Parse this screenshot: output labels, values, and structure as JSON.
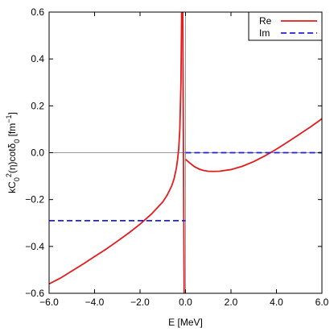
{
  "chart_data": {
    "type": "line",
    "xlabel": "E [MeV]",
    "ylabel_parts": [
      "kC",
      "0",
      "2",
      "(η)cotδ",
      "0",
      " [fm",
      "−1",
      "]"
    ],
    "xlim": [
      -6.0,
      6.0
    ],
    "ylim": [
      -0.6,
      0.6
    ],
    "x_ticks": [
      -6,
      -4,
      -2,
      0,
      2,
      4,
      6
    ],
    "x_tick_labels": [
      "−6.0",
      "−4.0",
      "−2.0",
      "0.0",
      "2.0",
      "4.0",
      "6.0"
    ],
    "y_ticks": [
      -0.6,
      -0.4,
      -0.2,
      0.0,
      0.2,
      0.4,
      0.6
    ],
    "y_tick_labels": [
      "−0.6",
      "−0.4",
      "−0.2",
      "0.0",
      "0.2",
      "0.4",
      "0.6"
    ],
    "legend_position": "top-right",
    "series": [
      {
        "name": "Re",
        "color": "#e41a1c",
        "style": "solid",
        "segments": [
          [
            [
              -6.0,
              -0.56
            ],
            [
              -5.5,
              -0.535
            ],
            [
              -5.0,
              -0.505
            ],
            [
              -4.5,
              -0.475
            ],
            [
              -4.0,
              -0.443
            ],
            [
              -3.5,
              -0.412
            ],
            [
              -3.0,
              -0.378
            ],
            [
              -2.5,
              -0.343
            ],
            [
              -2.0,
              -0.305
            ],
            [
              -1.5,
              -0.262
            ],
            [
              -1.0,
              -0.21
            ],
            [
              -0.8,
              -0.18
            ],
            [
              -0.6,
              -0.14
            ],
            [
              -0.5,
              -0.11
            ],
            [
              -0.4,
              -0.065
            ],
            [
              -0.35,
              -0.03
            ],
            [
              -0.3,
              0.015
            ],
            [
              -0.25,
              0.1
            ],
            [
              -0.2,
              0.3
            ],
            [
              -0.17,
              0.6
            ]
          ],
          [
            [
              -0.12,
              0.6
            ],
            [
              -0.1,
              0.2
            ],
            [
              -0.08,
              -0.2
            ],
            [
              -0.06,
              -0.6
            ]
          ],
          [
            [
              0.0,
              -0.028
            ],
            [
              0.2,
              -0.045
            ],
            [
              0.4,
              -0.06
            ],
            [
              0.6,
              -0.07
            ],
            [
              0.8,
              -0.076
            ],
            [
              1.0,
              -0.079
            ],
            [
              1.2,
              -0.08
            ],
            [
              1.5,
              -0.079
            ],
            [
              2.0,
              -0.072
            ],
            [
              2.5,
              -0.058
            ],
            [
              3.0,
              -0.038
            ],
            [
              3.5,
              -0.013
            ],
            [
              4.0,
              0.015
            ],
            [
              4.5,
              0.046
            ],
            [
              5.0,
              0.078
            ],
            [
              5.5,
              0.11
            ],
            [
              6.0,
              0.145
            ]
          ]
        ]
      },
      {
        "name": "Im",
        "color": "#1f1fe0",
        "style": "dashed",
        "segments": [
          [
            [
              -6.0,
              -0.29
            ],
            [
              0.0,
              -0.29
            ]
          ],
          [
            [
              0.0,
              0.0
            ],
            [
              6.0,
              0.0
            ]
          ]
        ]
      }
    ],
    "reference_lines": {
      "horizontal_y": 0.0,
      "vertical_x": 0.0,
      "color": "#999999"
    }
  }
}
